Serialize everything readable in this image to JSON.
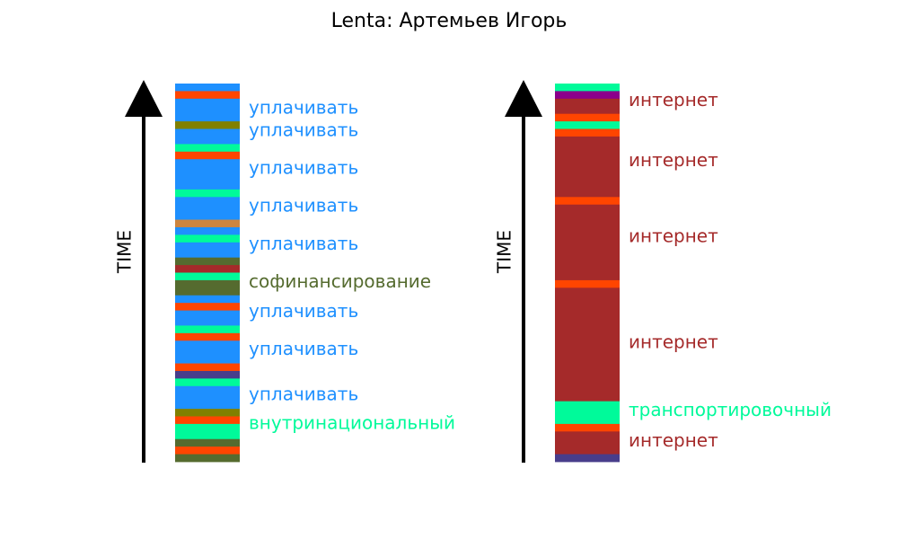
{
  "title": "Lenta: Артемьев Игорь",
  "chart_data": [
    {
      "type": "stacked-bar",
      "orientation": "vertical",
      "axis_label": "TIME",
      "axis_direction": "up",
      "segments_top_to_bottom": [
        {
          "color": "#1e90ff",
          "units": 1
        },
        {
          "color": "#ff4500",
          "units": 1
        },
        {
          "color": "#1e90ff",
          "units": 3
        },
        {
          "color": "#808000",
          "units": 1
        },
        {
          "color": "#1e90ff",
          "units": 2
        },
        {
          "color": "#00fa9a",
          "units": 1
        },
        {
          "color": "#ff4500",
          "units": 1
        },
        {
          "color": "#1e90ff",
          "units": 4
        },
        {
          "color": "#00fa9a",
          "units": 1
        },
        {
          "color": "#1e90ff",
          "units": 3
        },
        {
          "color": "#cd853f",
          "units": 1
        },
        {
          "color": "#1e90ff",
          "units": 1
        },
        {
          "color": "#00fa9a",
          "units": 1
        },
        {
          "color": "#1e90ff",
          "units": 2
        },
        {
          "color": "#556b2f",
          "units": 1
        },
        {
          "color": "#a52a2a",
          "units": 1
        },
        {
          "color": "#00fa9a",
          "units": 1
        },
        {
          "color": "#556b2f",
          "units": 2
        },
        {
          "color": "#1e90ff",
          "units": 1
        },
        {
          "color": "#ff4500",
          "units": 1
        },
        {
          "color": "#1e90ff",
          "units": 2
        },
        {
          "color": "#00fa9a",
          "units": 1
        },
        {
          "color": "#ff4500",
          "units": 1
        },
        {
          "color": "#1e90ff",
          "units": 3
        },
        {
          "color": "#ff4500",
          "units": 1
        },
        {
          "color": "#483d8b",
          "units": 1
        },
        {
          "color": "#00fa9a",
          "units": 1
        },
        {
          "color": "#1e90ff",
          "units": 3
        },
        {
          "color": "#808000",
          "units": 1
        },
        {
          "color": "#ff4500",
          "units": 1
        },
        {
          "color": "#00fa9a",
          "units": 2
        },
        {
          "color": "#556b2f",
          "units": 1
        },
        {
          "color": "#ff4500",
          "units": 1
        },
        {
          "color": "#556b2f",
          "units": 1
        }
      ],
      "labels": [
        {
          "text": "уплачивать",
          "color": "#1e90ff",
          "at_unit": 3.3
        },
        {
          "text": "уплачивать",
          "color": "#1e90ff",
          "at_unit": 6.3
        },
        {
          "text": "уплачивать",
          "color": "#1e90ff",
          "at_unit": 11.3
        },
        {
          "text": "уплачивать",
          "color": "#1e90ff",
          "at_unit": 16.3
        },
        {
          "text": "уплачивать",
          "color": "#1e90ff",
          "at_unit": 21.3
        },
        {
          "text": "софинансирование",
          "color": "#556b2f",
          "at_unit": 26.3
        },
        {
          "text": "уплачивать",
          "color": "#1e90ff",
          "at_unit": 30.2
        },
        {
          "text": "уплачивать",
          "color": "#1e90ff",
          "at_unit": 35.2
        },
        {
          "text": "уплачивать",
          "color": "#1e90ff",
          "at_unit": 41.2
        },
        {
          "text": "внутринациональный",
          "color": "#00fa9a",
          "at_unit": 45.0
        }
      ]
    },
    {
      "type": "stacked-bar",
      "orientation": "vertical",
      "axis_label": "TIME",
      "axis_direction": "up",
      "segments_top_to_bottom": [
        {
          "color": "#00fa9a",
          "units": 1
        },
        {
          "color": "#8b008b",
          "units": 1
        },
        {
          "color": "#a52a2a",
          "units": 2
        },
        {
          "color": "#ff4500",
          "units": 1
        },
        {
          "color": "#00fa9a",
          "units": 1
        },
        {
          "color": "#ff4500",
          "units": 1
        },
        {
          "color": "#a52a2a",
          "units": 8
        },
        {
          "color": "#ff4500",
          "units": 1
        },
        {
          "color": "#a52a2a",
          "units": 10
        },
        {
          "color": "#ff4500",
          "units": 1
        },
        {
          "color": "#a52a2a",
          "units": 15
        },
        {
          "color": "#00fa9a",
          "units": 3
        },
        {
          "color": "#ff4500",
          "units": 1
        },
        {
          "color": "#a52a2a",
          "units": 3
        },
        {
          "color": "#483d8b",
          "units": 1
        }
      ],
      "labels": [
        {
          "text": "интернет",
          "color": "#a52a2a",
          "at_unit": 2.3
        },
        {
          "text": "интернет",
          "color": "#a52a2a",
          "at_unit": 10.3
        },
        {
          "text": "интернет",
          "color": "#a52a2a",
          "at_unit": 20.3
        },
        {
          "text": "интернет",
          "color": "#a52a2a",
          "at_unit": 34.3
        },
        {
          "text": "транспортировочный",
          "color": "#00fa9a",
          "at_unit": 43.3
        },
        {
          "text": "интернет",
          "color": "#a52a2a",
          "at_unit": 47.3
        }
      ]
    }
  ]
}
